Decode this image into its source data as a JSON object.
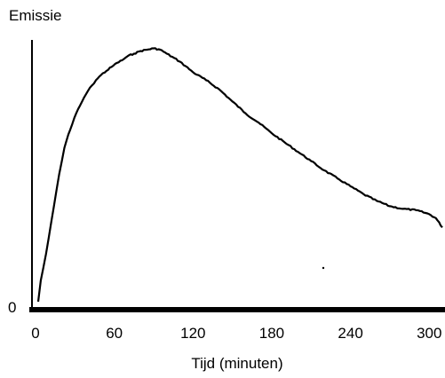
{
  "chart_data": {
    "type": "line",
    "title": "",
    "ylabel": "Emissie",
    "xlabel": "Tijd (minuten)",
    "y_zero_label": "0",
    "xlim": [
      0,
      312
    ],
    "ylim": [
      0,
      100
    ],
    "x_ticks": [
      0,
      60,
      120,
      180,
      240,
      300
    ],
    "x_tick_labels": [
      "0",
      "60",
      "120",
      "180",
      "240",
      "300"
    ],
    "y_scale_labeled": false,
    "grid": false,
    "legend": "none",
    "line_color": "#000000",
    "series": [
      {
        "x": [
          2,
          4,
          6,
          8,
          10,
          12,
          14,
          16,
          18,
          20,
          22,
          25,
          28,
          31,
          34,
          37,
          40,
          43,
          46,
          50,
          54,
          58,
          62,
          66,
          70,
          75,
          80,
          85,
          90,
          95,
          100,
          110,
          120,
          130,
          140,
          150,
          160,
          170,
          180,
          190,
          200,
          210,
          220,
          230,
          240,
          250,
          260,
          270,
          280,
          290,
          300,
          305,
          310
        ],
        "y": [
          3,
          11,
          16,
          21,
          27,
          33,
          39,
          45,
          51,
          56,
          61,
          66,
          70,
          74,
          77,
          80,
          82.5,
          84.5,
          86.5,
          88.5,
          90,
          91.5,
          93,
          94,
          95.5,
          96.5,
          97.5,
          98,
          98.5,
          98,
          96.5,
          93.5,
          89.5,
          86.5,
          83,
          78.5,
          74,
          70.5,
          66.5,
          63,
          59.5,
          56,
          52.5,
          49.5,
          46.5,
          43.5,
          41,
          39,
          38,
          37.5,
          36,
          34.5,
          31
        ]
      }
    ]
  }
}
